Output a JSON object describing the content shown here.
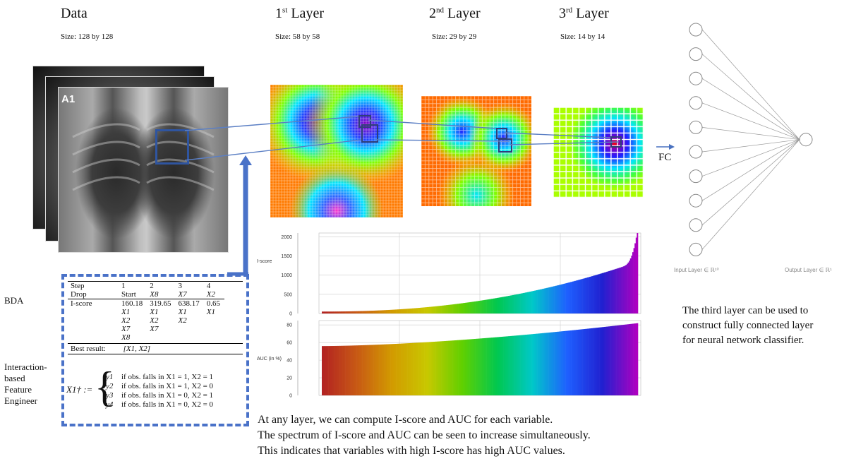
{
  "headers": {
    "data": {
      "title": "Data",
      "size": "Size: 128 by 128"
    },
    "layer1": {
      "title_sup": "st",
      "title_num": "1",
      "title_rest": " Layer",
      "size": "Size: 58 by 58"
    },
    "layer2": {
      "title_sup": "nd",
      "title_num": "2",
      "title_rest": " Layer",
      "size": "Size: 29 by 29"
    },
    "layer3": {
      "title_sup": "rd",
      "title_num": "3",
      "title_rest": " Layer",
      "size": "Size: 14 by 14"
    }
  },
  "xray_label": "A1",
  "fc_label": "FC",
  "left_labels": {
    "bda": "BDA",
    "interaction": [
      "Interaction-",
      "based",
      "Feature",
      "Engineer"
    ]
  },
  "bda_table": {
    "rows": [
      [
        "Step",
        "1",
        "2",
        "3",
        "4"
      ],
      [
        "Drop",
        "Start",
        "X8",
        "X7",
        "X2"
      ],
      [
        "I-score",
        "160.18",
        "319.65",
        "638.17",
        "0.65"
      ],
      [
        "",
        "X1",
        "X1",
        "X1",
        "X1"
      ],
      [
        "",
        "X2",
        "X2",
        "X2",
        ""
      ],
      [
        "",
        "X7",
        "X7",
        "",
        ""
      ],
      [
        "",
        "X8",
        "",
        "",
        ""
      ]
    ],
    "best_label": "Best result:",
    "best_value": "[X1, X2]"
  },
  "formula": {
    "lhs": "X1† :=",
    "cases": [
      {
        "y": "y1",
        "cond": "if obs. falls in X1 = 1, X2 = 1"
      },
      {
        "y": "y2",
        "cond": "if obs. falls in X1 = 1, X2 = 0"
      },
      {
        "y": "y3",
        "cond": "if obs. falls in X1 = 0, X2 = 1"
      },
      {
        "y": "y4",
        "cond": "if obs. falls in X1 = 0, X2 = 0"
      }
    ]
  },
  "nn": {
    "input_label": "Input Layer ∈ ℝ¹⁰",
    "output_label": "Output Layer ∈ ℝ¹",
    "input_nodes": 10
  },
  "right_text": [
    "The third layer can be used to",
    "construct fully connected layer",
    "for neural network classifier."
  ],
  "bottom_text": [
    "At any layer, we can compute I-score and AUC for each variable.",
    "The spectrum of I-score and AUC can be seen to increase simultaneously.",
    "This indicates that variables with high I-score has high AUC values."
  ],
  "chart_data": [
    {
      "type": "bar",
      "ylabel": "I-score",
      "yticks": [
        0,
        500,
        1000,
        1500,
        2000
      ],
      "ylim": [
        0,
        2100
      ],
      "series_shape": "sorted ascending across ~280 variables",
      "values_start": 50,
      "values_mid": 450,
      "values_near_end": 1350,
      "values_max": 2150,
      "color_gradient": [
        "#b22222",
        "#d2691e",
        "#c8c800",
        "#00c800",
        "#00bfbf",
        "#0000dd",
        "#cc00cc"
      ]
    },
    {
      "type": "bar",
      "ylabel": "AUC (in %)",
      "yticks": [
        0,
        20,
        40,
        60,
        80
      ],
      "ylim": [
        0,
        85
      ],
      "series_shape": "sorted ascending across ~280 variables",
      "values_start": 56,
      "values_mid": 68,
      "values_max": 82,
      "color_gradient": [
        "#b22222",
        "#d2691e",
        "#c8c800",
        "#00c800",
        "#00bfbf",
        "#0000dd",
        "#cc00cc"
      ]
    }
  ]
}
